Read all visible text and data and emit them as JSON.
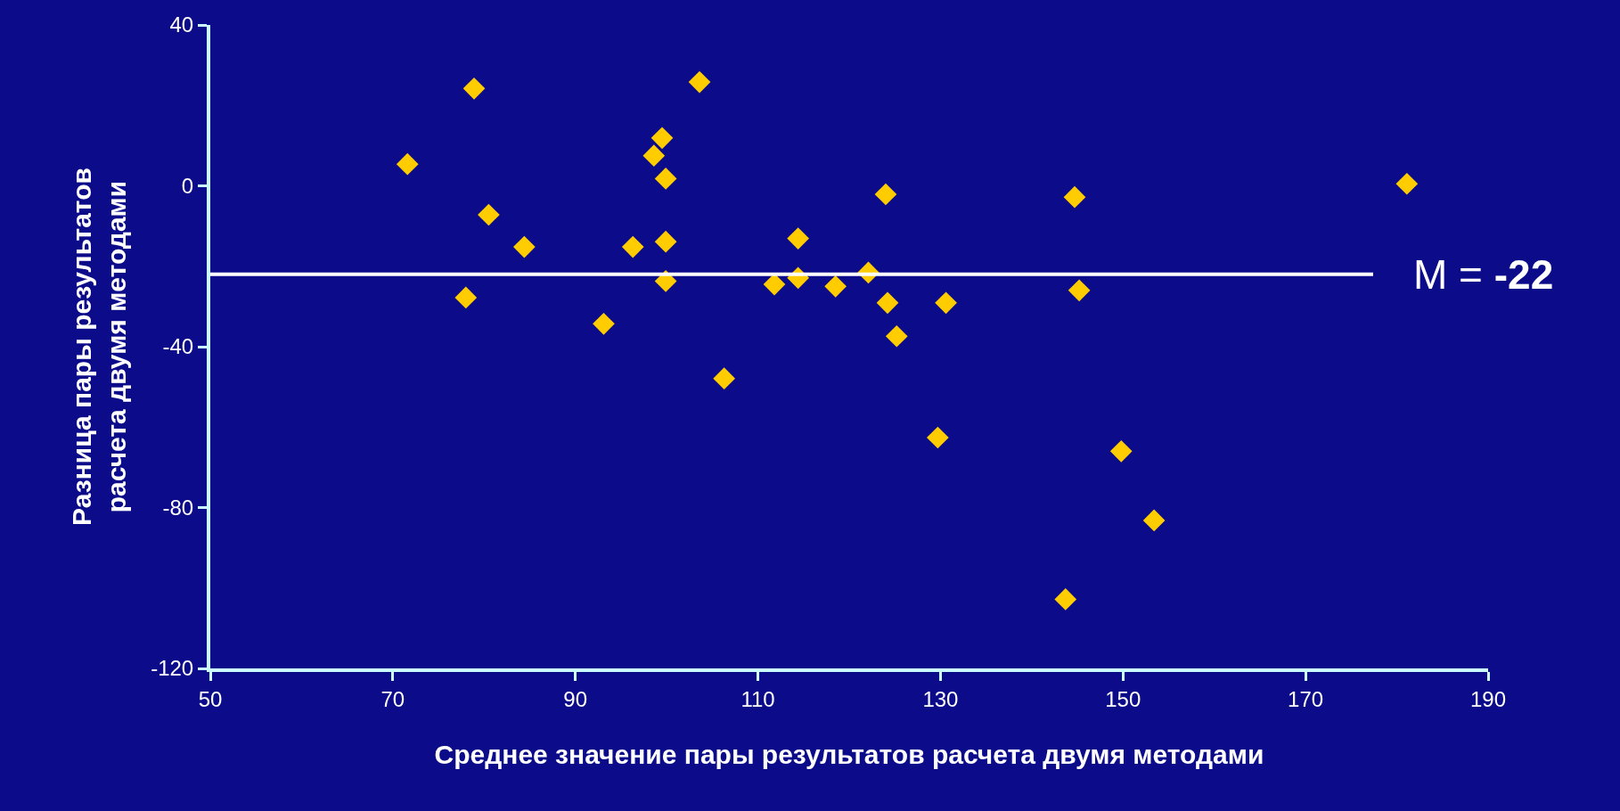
{
  "chart_data": {
    "type": "scatter",
    "xlabel": "Среднее значение пары результатов расчета двумя методами",
    "ylabel": "Разница пары результатов\nрасчета двумя методами",
    "x": [
      71.6,
      78.9,
      78.0,
      80.5,
      84.4,
      93.1,
      96.3,
      99.5,
      98.6,
      99.9,
      99.9,
      99.9,
      103.6,
      106.3,
      111.8,
      114.4,
      114.4,
      118.5,
      122.1,
      124.0,
      124.2,
      125.2,
      129.7,
      130.6,
      143.7,
      144.7,
      145.2,
      149.8,
      153.4,
      181.1
    ],
    "values": [
      5.4,
      24.2,
      -27.8,
      -7.2,
      -15.2,
      -34.3,
      -15.2,
      11.9,
      7.5,
      1.8,
      -13.9,
      -23.7,
      25.8,
      -47.9,
      -24.5,
      -13.1,
      -22.9,
      -25.0,
      -21.6,
      -2.1,
      -29.1,
      -37.4,
      -62.6,
      -29.1,
      -102.8,
      -2.8,
      -26.0,
      -66.0,
      -83.2,
      0.5
    ],
    "color": "#ffcc00",
    "marker": "diamond",
    "grid": false,
    "xlim": [
      50,
      190
    ],
    "xticks": [
      50,
      70,
      90,
      110,
      130,
      150,
      170,
      190
    ],
    "ylim": [
      -120,
      40
    ],
    "yticks": [
      -120,
      -80,
      -40,
      0,
      40
    ],
    "ref_lines": [
      {
        "axis": "y",
        "value": -22,
        "label": "M = -22",
        "color": "#ffffff"
      }
    ]
  }
}
